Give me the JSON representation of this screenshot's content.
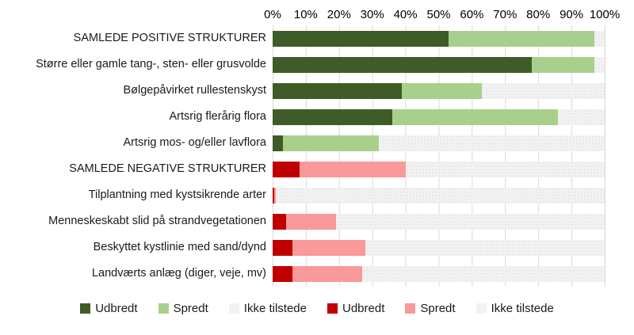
{
  "chart_data": {
    "type": "bar",
    "orientation": "horizontal",
    "stacked": true,
    "title": "",
    "x_axis": {
      "min": 0,
      "max": 100,
      "tick_step": 10,
      "tick_labels": [
        "0%",
        "10%",
        "20%",
        "30%",
        "40%",
        "50%",
        "60%",
        "70%",
        "80%",
        "90%",
        "100%"
      ],
      "grid": true,
      "gridline_color": "#d9d9d9"
    },
    "segment_keys": [
      "udbredt",
      "spredt",
      "ikke_tilstede"
    ],
    "colors": {
      "positive": {
        "udbredt": "#3e5c27",
        "spredt": "#a8d08d",
        "ikke_tilstede": "#f2f2f2"
      },
      "negative": {
        "udbredt": "#c00000",
        "spredt": "#f99999",
        "ikke_tilstede": "#f2f2f2"
      }
    },
    "categories": [
      {
        "label": "SAMLEDE POSITIVE STRUKTURER",
        "group": "positive",
        "udbredt": 53,
        "spredt": 44,
        "ikke_tilstede": 3
      },
      {
        "label": "Større eller gamle tang-, sten- eller grusvolde",
        "group": "positive",
        "udbredt": 78,
        "spredt": 19,
        "ikke_tilstede": 3
      },
      {
        "label": "Bølgepåvirket rullestenskyst",
        "group": "positive",
        "udbredt": 39,
        "spredt": 24,
        "ikke_tilstede": 37
      },
      {
        "label": "Artsrig flerårig flora",
        "group": "positive",
        "udbredt": 36,
        "spredt": 50,
        "ikke_tilstede": 14
      },
      {
        "label": "Artsrig mos- og/eller lavflora",
        "group": "positive",
        "udbredt": 3,
        "spredt": 29,
        "ikke_tilstede": 68
      },
      {
        "label": "SAMLEDE NEGATIVE STRUKTURER",
        "group": "negative",
        "udbredt": 8,
        "spredt": 32,
        "ikke_tilstede": 60
      },
      {
        "label": "Tilplantning med kystsikrende arter",
        "group": "negative",
        "udbredt": 0.5,
        "spredt": 0.5,
        "ikke_tilstede": 99
      },
      {
        "label": "Menneskeskabt slid på strandvegetationen",
        "group": "negative",
        "udbredt": 4,
        "spredt": 15,
        "ikke_tilstede": 81
      },
      {
        "label": "Beskyttet kystlinie med sand/dynd",
        "group": "negative",
        "udbredt": 6,
        "spredt": 22,
        "ikke_tilstede": 72
      },
      {
        "label": "Landværts anlæg (diger, veje, mv)",
        "group": "negative",
        "udbredt": 6,
        "spredt": 21,
        "ikke_tilstede": 73
      }
    ],
    "legend_position": "bottom",
    "legend": [
      {
        "label": "Udbredt",
        "color": "#3e5c27"
      },
      {
        "label": "Spredt",
        "color": "#a8d08d"
      },
      {
        "label": "Ikke tilstede",
        "color": "#f2f2f2"
      },
      {
        "label": "Udbredt",
        "color": "#c00000"
      },
      {
        "label": "Spredt",
        "color": "#f99999"
      },
      {
        "label": "Ikke tilstede",
        "color": "#f2f2f2"
      }
    ]
  }
}
